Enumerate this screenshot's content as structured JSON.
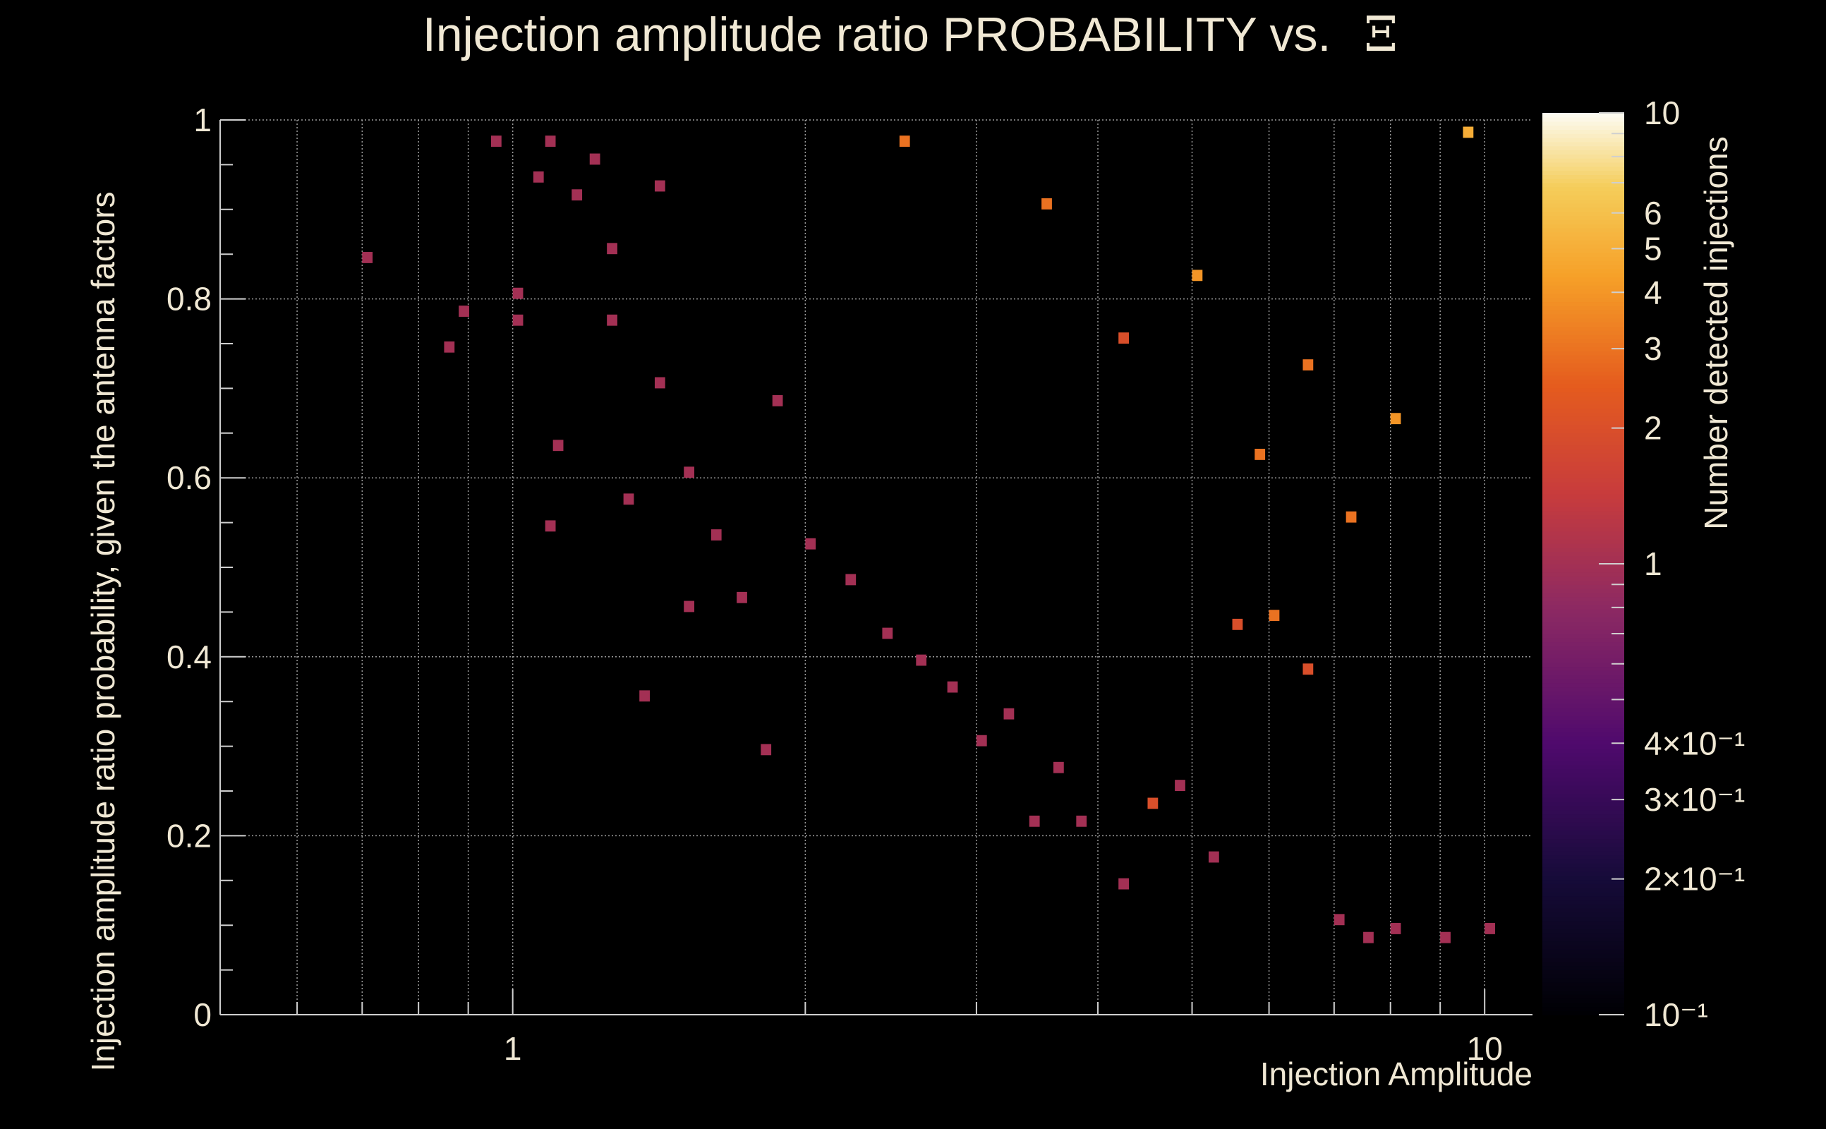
{
  "chart_data": {
    "type": "heatmap",
    "title": "Injection amplitude ratio PROBABILITY vs.",
    "title_symbol": "Ξ",
    "xlabel": "Injection Amplitude",
    "ylabel": "Injection amplitude ratio probability, given the antenna factors",
    "zlabel": "Number detected injections",
    "x_scale": "log",
    "xlim": [
      0.5,
      11.2
    ],
    "ylim": [
      0,
      1
    ],
    "z_scale": "log",
    "zlim": [
      0.1,
      10
    ],
    "grid": true,
    "colormap": "inferno",
    "x_tick_labels": [
      {
        "value": 1,
        "label": "1"
      },
      {
        "value": 10,
        "label": "10"
      }
    ],
    "y_tick_labels": [
      {
        "value": 0,
        "label": "0"
      },
      {
        "value": 0.2,
        "label": "0.2"
      },
      {
        "value": 0.4,
        "label": "0.4"
      },
      {
        "value": 0.6,
        "label": "0.6"
      },
      {
        "value": 0.8,
        "label": "0.8"
      },
      {
        "value": 1,
        "label": "1"
      }
    ],
    "z_tick_labels": [
      {
        "value": 10,
        "label": "10"
      },
      {
        "value": 6,
        "label": "6"
      },
      {
        "value": 5,
        "label": "5"
      },
      {
        "value": 4,
        "label": "4"
      },
      {
        "value": 3,
        "label": "3"
      },
      {
        "value": 2,
        "label": "2"
      },
      {
        "value": 1,
        "label": "1"
      },
      {
        "value": 0.4,
        "label": "4×10⁻¹"
      },
      {
        "value": 0.3,
        "label": "3×10⁻¹"
      },
      {
        "value": 0.2,
        "label": "2×10⁻¹"
      },
      {
        "value": 0.1,
        "label": "10⁻¹"
      }
    ],
    "cells": [
      [
        0.7,
        0.84,
        1
      ],
      [
        0.85,
        0.74,
        1
      ],
      [
        0.88,
        0.78,
        1
      ],
      [
        0.95,
        0.97,
        1
      ],
      [
        1.0,
        0.8,
        1
      ],
      [
        1.0,
        0.77,
        1
      ],
      [
        1.05,
        0.93,
        1
      ],
      [
        1.08,
        0.97,
        1
      ],
      [
        1.1,
        0.63,
        1
      ],
      [
        1.08,
        0.54,
        1
      ],
      [
        1.15,
        0.91,
        1
      ],
      [
        1.2,
        0.95,
        1
      ],
      [
        1.25,
        0.85,
        1
      ],
      [
        1.25,
        0.77,
        1
      ],
      [
        1.3,
        0.57,
        1
      ],
      [
        1.35,
        0.35,
        1
      ],
      [
        1.4,
        0.7,
        1
      ],
      [
        1.4,
        0.92,
        1
      ],
      [
        1.5,
        0.45,
        1
      ],
      [
        1.5,
        0.6,
        1
      ],
      [
        1.6,
        0.53,
        1
      ],
      [
        1.7,
        0.46,
        1
      ],
      [
        1.8,
        0.29,
        1
      ],
      [
        1.85,
        0.68,
        1
      ],
      [
        2.0,
        0.52,
        1
      ],
      [
        2.2,
        0.48,
        1
      ],
      [
        2.4,
        0.42,
        1
      ],
      [
        2.6,
        0.39,
        1
      ],
      [
        2.8,
        0.36,
        1
      ],
      [
        3.0,
        0.3,
        1
      ],
      [
        3.2,
        0.33,
        1
      ],
      [
        3.4,
        0.21,
        1
      ],
      [
        3.6,
        0.27,
        1
      ],
      [
        3.8,
        0.21,
        1
      ],
      [
        4.2,
        0.14,
        1
      ],
      [
        4.5,
        0.23,
        2
      ],
      [
        4.8,
        0.25,
        1
      ],
      [
        5.2,
        0.17,
        1
      ],
      [
        5.5,
        0.43,
        2
      ],
      [
        6.0,
        0.44,
        3
      ],
      [
        6.5,
        0.38,
        2
      ],
      [
        7.0,
        0.1,
        1
      ],
      [
        7.5,
        0.08,
        1
      ],
      [
        8.0,
        0.09,
        1
      ],
      [
        9.0,
        0.08,
        1
      ],
      [
        10.0,
        0.09,
        1
      ],
      [
        2.5,
        0.97,
        3
      ],
      [
        3.5,
        0.9,
        3
      ],
      [
        5.0,
        0.82,
        4
      ],
      [
        6.5,
        0.72,
        3
      ],
      [
        8.0,
        0.66,
        4
      ],
      [
        9.5,
        0.98,
        5
      ],
      [
        7.2,
        0.55,
        3
      ],
      [
        5.8,
        0.62,
        3
      ],
      [
        4.2,
        0.75,
        2
      ]
    ]
  }
}
